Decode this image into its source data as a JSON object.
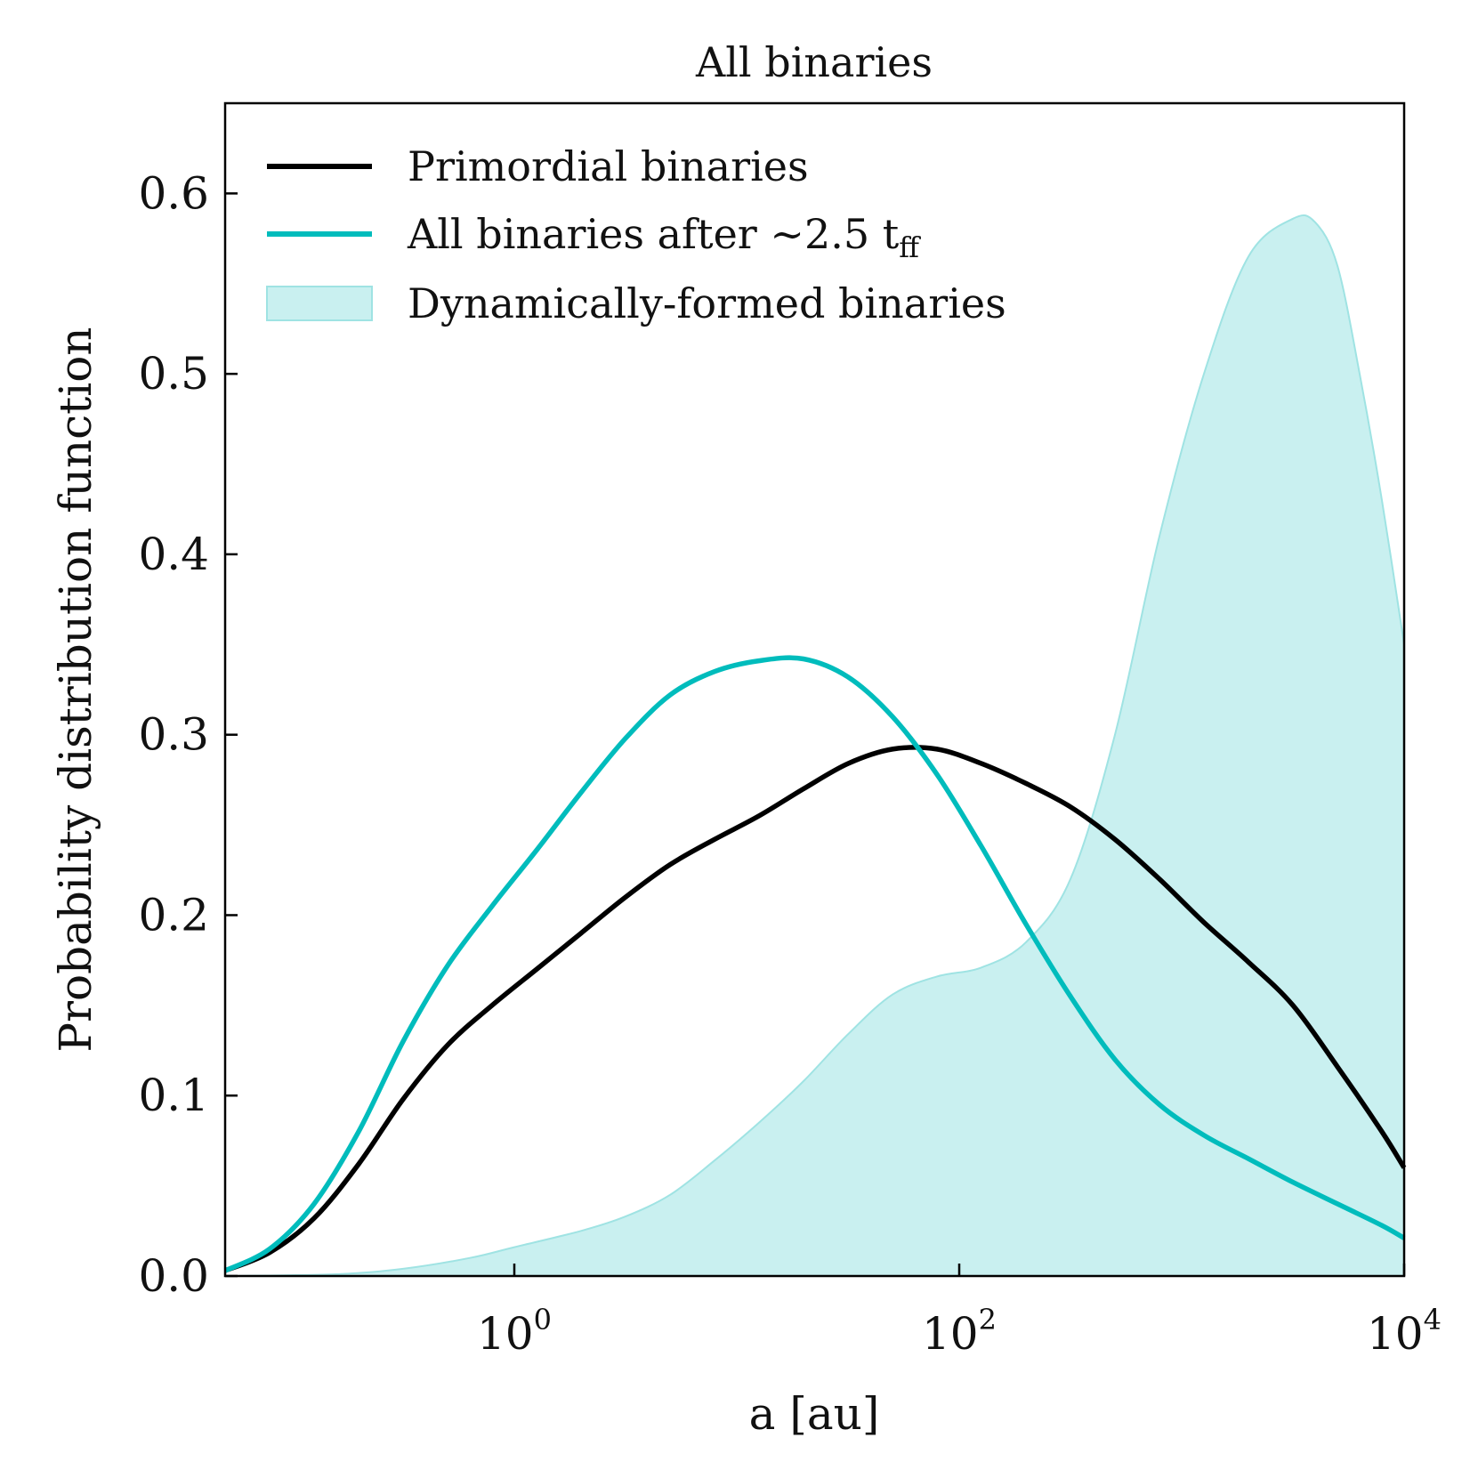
{
  "chart_data": {
    "type": "line",
    "title": "All binaries",
    "xlabel": "a [au]",
    "ylabel": "Probability distribution function",
    "xscale": "log",
    "xlim_log10": [
      -1.3,
      4.0
    ],
    "ylim": [
      0.0,
      0.65
    ],
    "x_ticks": [
      {
        "base": "10",
        "exp": "0",
        "value": 1
      },
      {
        "base": "10",
        "exp": "2",
        "value": 100
      },
      {
        "base": "10",
        "exp": "4",
        "value": 10000
      }
    ],
    "y_ticks": [
      "0.0",
      "0.1",
      "0.2",
      "0.3",
      "0.4",
      "0.5",
      "0.6"
    ],
    "legend_position": "top-left",
    "series": [
      {
        "name": "Primordial binaries",
        "kind": "line",
        "color": "#000000",
        "log10_x": [
          -1.3,
          -1.1,
          -0.9,
          -0.7,
          -0.5,
          -0.3,
          -0.1,
          0.1,
          0.3,
          0.5,
          0.7,
          0.9,
          1.1,
          1.3,
          1.5,
          1.7,
          1.9,
          2.1,
          2.3,
          2.5,
          2.7,
          2.9,
          3.1,
          3.3,
          3.5,
          3.7,
          3.9,
          4.0
        ],
        "y": [
          0.003,
          0.013,
          0.032,
          0.062,
          0.098,
          0.128,
          0.15,
          0.17,
          0.19,
          0.21,
          0.228,
          0.242,
          0.255,
          0.27,
          0.284,
          0.292,
          0.292,
          0.284,
          0.273,
          0.26,
          0.242,
          0.22,
          0.196,
          0.174,
          0.15,
          0.116,
          0.08,
          0.06
        ]
      },
      {
        "name": "All binaries after ~2.5 tff",
        "label_main": "All binaries after ∼2.5 t",
        "label_sub": "ff",
        "kind": "line",
        "color": "#00bcbc",
        "log10_x": [
          -1.3,
          -1.1,
          -0.9,
          -0.7,
          -0.5,
          -0.3,
          -0.1,
          0.1,
          0.3,
          0.5,
          0.7,
          0.9,
          1.1,
          1.3,
          1.5,
          1.7,
          1.9,
          2.1,
          2.3,
          2.5,
          2.7,
          2.9,
          3.1,
          3.3,
          3.5,
          3.7,
          3.9,
          4.0
        ],
        "y": [
          0.003,
          0.015,
          0.04,
          0.08,
          0.13,
          0.172,
          0.205,
          0.236,
          0.268,
          0.298,
          0.322,
          0.335,
          0.341,
          0.342,
          0.332,
          0.31,
          0.278,
          0.238,
          0.195,
          0.155,
          0.12,
          0.095,
          0.078,
          0.065,
          0.052,
          0.04,
          0.028,
          0.021
        ]
      },
      {
        "name": "Dynamically-formed binaries",
        "kind": "area",
        "color": "#9fe3e3",
        "log10_x": [
          -1.3,
          -0.8,
          -0.5,
          -0.2,
          0.0,
          0.3,
          0.5,
          0.7,
          0.9,
          1.1,
          1.3,
          1.5,
          1.7,
          1.9,
          2.1,
          2.3,
          2.5,
          2.7,
          2.9,
          3.1,
          3.3,
          3.5,
          3.6,
          3.7,
          3.8,
          3.9,
          4.0
        ],
        "y": [
          0.0,
          0.001,
          0.004,
          0.01,
          0.016,
          0.025,
          0.033,
          0.045,
          0.064,
          0.085,
          0.108,
          0.134,
          0.156,
          0.166,
          0.171,
          0.185,
          0.22,
          0.3,
          0.41,
          0.5,
          0.565,
          0.586,
          0.584,
          0.56,
          0.5,
          0.43,
          0.35
        ]
      }
    ]
  }
}
